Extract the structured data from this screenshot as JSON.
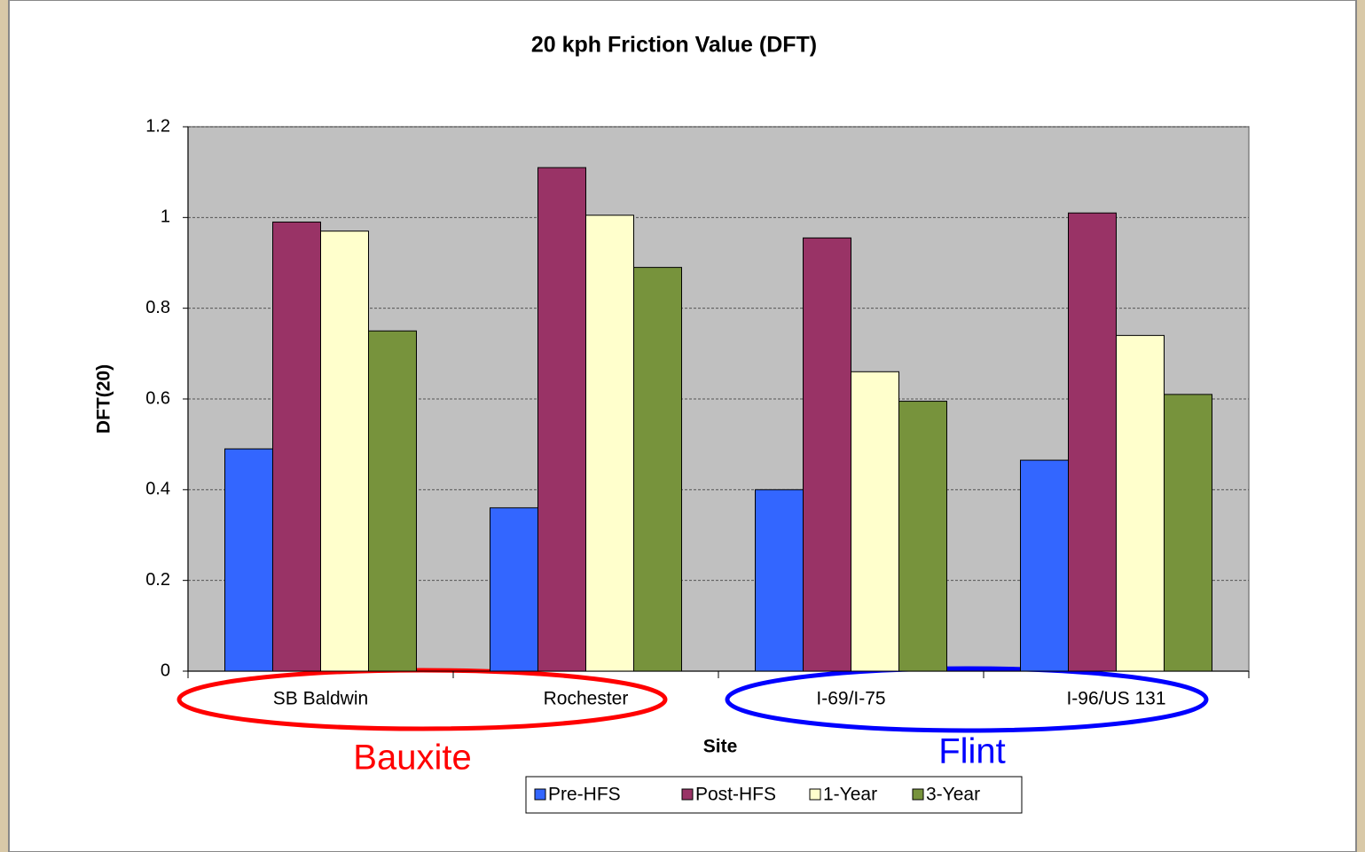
{
  "chart_data": {
    "type": "bar",
    "title": "20 kph Friction Value (DFT)",
    "x_label": "Site",
    "y_label": "DFT(20)",
    "categories": [
      "SB Baldwin",
      "Rochester",
      "I-69/I-75",
      "I-96/US 131"
    ],
    "series": [
      {
        "name": "Pre-HFS",
        "color": "#3366ff",
        "values": [
          0.49,
          0.36,
          0.4,
          0.465
        ]
      },
      {
        "name": "Post-HFS",
        "color": "#993366",
        "values": [
          0.99,
          1.11,
          0.955,
          1.01
        ]
      },
      {
        "name": "1-Year",
        "color": "#ffffcc",
        "values": [
          0.97,
          1.005,
          0.66,
          0.74
        ]
      },
      {
        "name": "3-Year",
        "color": "#77933c",
        "values": [
          0.75,
          0.89,
          0.595,
          0.61
        ]
      }
    ],
    "ylim": [
      0,
      1.2
    ],
    "yticks": [
      0,
      0.2,
      0.4,
      0.6,
      0.8,
      1,
      1.2
    ],
    "grid": true,
    "legend": "bottom",
    "annotations": [
      {
        "text": "Bauxite",
        "color": "#ff0000"
      },
      {
        "text": "Flint",
        "color": "#0000ff"
      }
    ]
  }
}
